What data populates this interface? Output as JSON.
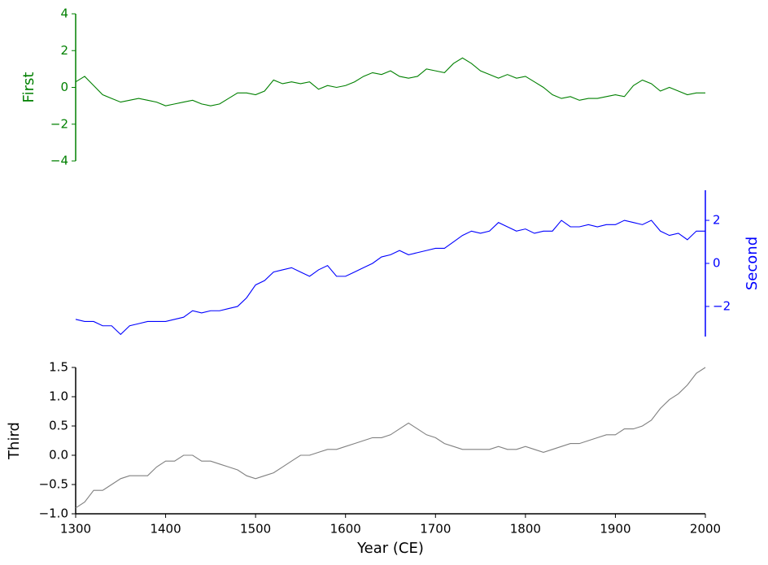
{
  "chart_data": [
    {
      "type": "line",
      "ylabel": "First",
      "color": "#008000",
      "axis_color": "#008000",
      "y_axis_side": "left",
      "xlim": [
        1300,
        2000
      ],
      "ylim": [
        -4,
        4
      ],
      "yticks": [
        4,
        2,
        0,
        {
          "value": -2,
          "label": "−2"
        },
        {
          "value": -4,
          "label": "−4"
        }
      ],
      "x": [
        1300,
        1310,
        1320,
        1330,
        1340,
        1350,
        1360,
        1370,
        1380,
        1390,
        1400,
        1410,
        1420,
        1430,
        1440,
        1450,
        1460,
        1470,
        1480,
        1490,
        1500,
        1510,
        1520,
        1530,
        1540,
        1550,
        1560,
        1570,
        1580,
        1590,
        1600,
        1610,
        1620,
        1630,
        1640,
        1650,
        1660,
        1670,
        1680,
        1690,
        1700,
        1710,
        1720,
        1730,
        1740,
        1750,
        1760,
        1770,
        1780,
        1790,
        1800,
        1810,
        1820,
        1830,
        1840,
        1850,
        1860,
        1870,
        1880,
        1890,
        1900,
        1910,
        1920,
        1930,
        1940,
        1950,
        1960,
        1970,
        1980,
        1990,
        2000
      ],
      "values": [
        0.3,
        0.6,
        0.1,
        -0.4,
        -0.6,
        -0.8,
        -0.7,
        -0.6,
        -0.7,
        -0.8,
        -1.0,
        -0.9,
        -0.8,
        -0.7,
        -0.9,
        -1.0,
        -0.9,
        -0.6,
        -0.3,
        -0.3,
        -0.4,
        -0.2,
        0.4,
        0.2,
        0.3,
        0.2,
        0.3,
        -0.1,
        0.1,
        0.0,
        0.1,
        0.3,
        0.6,
        0.8,
        0.7,
        0.9,
        0.6,
        0.5,
        0.6,
        1.0,
        0.9,
        0.8,
        1.3,
        1.6,
        1.3,
        0.9,
        0.7,
        0.5,
        0.7,
        0.5,
        0.6,
        0.3,
        0.0,
        -0.4,
        -0.6,
        -0.5,
        -0.7,
        -0.6,
        -0.6,
        -0.5,
        -0.4,
        -0.5,
        0.1,
        0.4,
        0.2,
        -0.2,
        0.0,
        -0.2,
        -0.4,
        -0.3,
        -0.3
      ]
    },
    {
      "type": "line",
      "ylabel": "Second",
      "color": "#0000ff",
      "axis_color": "#0000ff",
      "y_axis_side": "right",
      "xlim": [
        1300,
        2000
      ],
      "ylim": [
        -3.4,
        3.4
      ],
      "yticks": [
        2,
        0,
        {
          "value": -2,
          "label": "−2"
        }
      ],
      "x": [
        1300,
        1310,
        1320,
        1330,
        1340,
        1350,
        1360,
        1370,
        1380,
        1390,
        1400,
        1410,
        1420,
        1430,
        1440,
        1450,
        1460,
        1470,
        1480,
        1490,
        1500,
        1510,
        1520,
        1530,
        1540,
        1550,
        1560,
        1570,
        1580,
        1590,
        1600,
        1610,
        1620,
        1630,
        1640,
        1650,
        1660,
        1670,
        1680,
        1690,
        1700,
        1710,
        1720,
        1730,
        1740,
        1750,
        1760,
        1770,
        1780,
        1790,
        1800,
        1810,
        1820,
        1830,
        1840,
        1850,
        1860,
        1870,
        1880,
        1890,
        1900,
        1910,
        1920,
        1930,
        1940,
        1950,
        1960,
        1970,
        1980,
        1990,
        2000
      ],
      "values": [
        -2.6,
        -2.7,
        -2.7,
        -2.9,
        -2.9,
        -3.3,
        -2.9,
        -2.8,
        -2.7,
        -2.7,
        -2.7,
        -2.6,
        -2.5,
        -2.2,
        -2.3,
        -2.2,
        -2.2,
        -2.1,
        -2.0,
        -1.6,
        -1.0,
        -0.8,
        -0.4,
        -0.3,
        -0.2,
        -0.4,
        -0.6,
        -0.3,
        -0.1,
        -0.6,
        -0.6,
        -0.4,
        -0.2,
        0.0,
        0.3,
        0.4,
        0.6,
        0.4,
        0.5,
        0.6,
        0.7,
        0.7,
        1.0,
        1.3,
        1.5,
        1.4,
        1.5,
        1.9,
        1.7,
        1.5,
        1.6,
        1.4,
        1.5,
        1.5,
        2.0,
        1.7,
        1.7,
        1.8,
        1.7,
        1.8,
        1.8,
        2.0,
        1.9,
        1.8,
        2.0,
        1.5,
        1.3,
        1.4,
        1.1,
        1.5,
        1.5
      ]
    },
    {
      "type": "line",
      "ylabel": "Third",
      "xlabel": "Year (CE)",
      "color": "#808080",
      "axis_color": "#000000",
      "y_axis_side": "left",
      "xlim": [
        1300,
        2000
      ],
      "ylim": [
        -1,
        1.5
      ],
      "xticks": [
        1300,
        1400,
        1500,
        1600,
        1700,
        1800,
        1900,
        2000
      ],
      "yticks": [
        1.5,
        {
          "value": 1,
          "label": "1.0"
        },
        0.5,
        {
          "value": 0,
          "label": "0.0"
        },
        {
          "value": -0.5,
          "label": "−0.5"
        },
        {
          "value": -1,
          "label": "−1.0"
        }
      ],
      "x": [
        1300,
        1310,
        1320,
        1330,
        1340,
        1350,
        1360,
        1370,
        1380,
        1390,
        1400,
        1410,
        1420,
        1430,
        1440,
        1450,
        1460,
        1470,
        1480,
        1490,
        1500,
        1510,
        1520,
        1530,
        1540,
        1550,
        1560,
        1570,
        1580,
        1590,
        1600,
        1610,
        1620,
        1630,
        1640,
        1650,
        1660,
        1670,
        1680,
        1690,
        1700,
        1710,
        1720,
        1730,
        1740,
        1750,
        1760,
        1770,
        1780,
        1790,
        1800,
        1810,
        1820,
        1830,
        1840,
        1850,
        1860,
        1870,
        1880,
        1890,
        1900,
        1910,
        1920,
        1930,
        1940,
        1950,
        1960,
        1970,
        1980,
        1990,
        2000
      ],
      "values": [
        -0.9,
        -0.8,
        -0.6,
        -0.6,
        -0.5,
        -0.4,
        -0.35,
        -0.35,
        -0.35,
        -0.2,
        -0.1,
        -0.1,
        0.0,
        0.0,
        -0.1,
        -0.1,
        -0.15,
        -0.2,
        -0.25,
        -0.35,
        -0.4,
        -0.35,
        -0.3,
        -0.2,
        -0.1,
        0.0,
        0.0,
        0.05,
        0.1,
        0.1,
        0.15,
        0.2,
        0.25,
        0.3,
        0.3,
        0.35,
        0.45,
        0.55,
        0.45,
        0.35,
        0.3,
        0.2,
        0.15,
        0.1,
        0.1,
        0.1,
        0.1,
        0.15,
        0.1,
        0.1,
        0.15,
        0.1,
        0.05,
        0.1,
        0.15,
        0.2,
        0.2,
        0.25,
        0.3,
        0.35,
        0.35,
        0.45,
        0.45,
        0.5,
        0.6,
        0.8,
        0.95,
        1.05,
        1.2,
        1.4,
        1.5
      ]
    }
  ]
}
